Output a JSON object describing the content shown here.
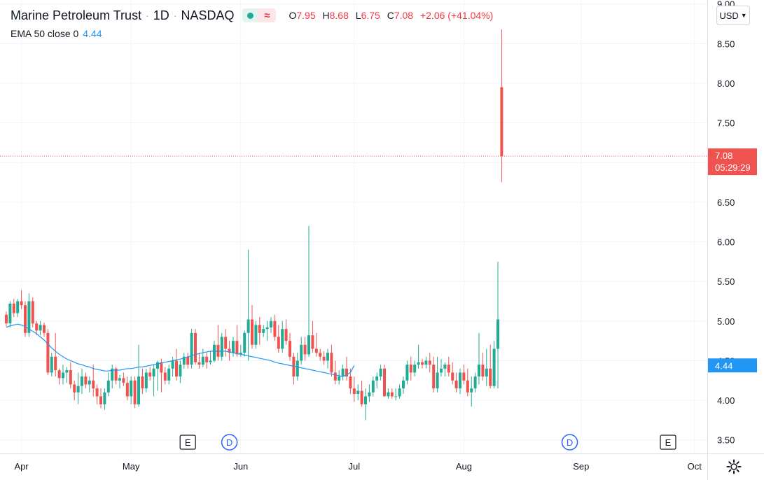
{
  "header": {
    "symbol": "Marine Petroleum Trust",
    "interval": "1D",
    "exchange": "NASDAQ",
    "open_label": "O",
    "open": "7.95",
    "high_label": "H",
    "high": "8.68",
    "low_label": "L",
    "low": "6.75",
    "close_label": "C",
    "close": "7.08",
    "change": "+2.06 (+41.04%)"
  },
  "indicator": {
    "name": "EMA 50 close 0",
    "value": "4.44"
  },
  "currency": "USD",
  "price_label": {
    "price": "7.08",
    "countdown": "05:29:29"
  },
  "ema_label": "4.44",
  "colors": {
    "up": "#22ab94",
    "down": "#ef5350",
    "ema": "#2196f3",
    "grid": "#f0f3fa",
    "text": "#131722"
  },
  "chart_data": {
    "type": "candlestick",
    "y_ticks": [
      "3.50",
      "4.00",
      "4.50",
      "5.00",
      "5.50",
      "6.00",
      "6.50",
      "7.00",
      "7.50",
      "8.00",
      "8.50",
      "9.00"
    ],
    "ylim": [
      3.33,
      9.05
    ],
    "x_ticks": [
      {
        "label": "Apr",
        "index": 4
      },
      {
        "label": "May",
        "index": 33
      },
      {
        "label": "Jun",
        "index": 62
      },
      {
        "label": "Jul",
        "index": 92
      },
      {
        "label": "Aug",
        "index": 121
      },
      {
        "label": "Sep",
        "index": 152
      },
      {
        "label": "Oct",
        "index": 182
      }
    ],
    "events": [
      {
        "type": "E",
        "index": 48
      },
      {
        "type": "D",
        "index": 59
      },
      {
        "type": "D",
        "index": 149
      },
      {
        "type": "E",
        "index": 175
      }
    ],
    "candles": [
      [
        5.08,
        5.12,
        4.93,
        4.97
      ],
      [
        4.97,
        5.25,
        4.92,
        5.22
      ],
      [
        5.22,
        5.28,
        5.05,
        5.1
      ],
      [
        5.1,
        5.28,
        5.05,
        5.25
      ],
      [
        5.25,
        5.39,
        5.15,
        5.2
      ],
      [
        5.2,
        5.25,
        4.8,
        4.85
      ],
      [
        4.85,
        5.35,
        4.8,
        5.25
      ],
      [
        5.25,
        5.3,
        4.92,
        4.97
      ],
      [
        4.97,
        5.0,
        4.82,
        4.88
      ],
      [
        4.88,
        5.0,
        4.82,
        4.95
      ],
      [
        4.95,
        4.98,
        4.8,
        4.85
      ],
      [
        4.85,
        4.9,
        4.32,
        4.35
      ],
      [
        4.35,
        4.6,
        4.3,
        4.55
      ],
      [
        4.55,
        4.85,
        4.3,
        4.38
      ],
      [
        4.38,
        4.4,
        4.2,
        4.28
      ],
      [
        4.28,
        4.45,
        4.2,
        4.35
      ],
      [
        4.35,
        4.42,
        4.22,
        4.38
      ],
      [
        4.38,
        4.48,
        4.15,
        4.2
      ],
      [
        4.2,
        4.25,
        4.0,
        4.1
      ],
      [
        4.1,
        4.35,
        3.95,
        4.18
      ],
      [
        4.18,
        4.4,
        4.08,
        4.3
      ],
      [
        4.3,
        4.35,
        4.15,
        4.2
      ],
      [
        4.2,
        4.3,
        4.1,
        4.25
      ],
      [
        4.25,
        4.45,
        4.05,
        4.15
      ],
      [
        4.15,
        4.2,
        3.95,
        4.05
      ],
      [
        4.05,
        4.15,
        3.9,
        3.95
      ],
      [
        3.95,
        4.15,
        3.88,
        4.1
      ],
      [
        4.1,
        4.35,
        4.05,
        4.25
      ],
      [
        4.25,
        4.45,
        4.15,
        4.4
      ],
      [
        4.4,
        4.42,
        4.2,
        4.25
      ],
      [
        4.25,
        4.32,
        4.15,
        4.28
      ],
      [
        4.28,
        4.35,
        4.18,
        4.22
      ],
      [
        4.22,
        4.3,
        4.0,
        4.05
      ],
      [
        4.05,
        4.3,
        3.95,
        4.25
      ],
      [
        4.25,
        4.3,
        3.9,
        3.95
      ],
      [
        3.95,
        4.7,
        3.92,
        4.3
      ],
      [
        4.3,
        4.4,
        4.08,
        4.15
      ],
      [
        4.15,
        4.4,
        4.1,
        4.35
      ],
      [
        4.35,
        4.42,
        4.25,
        4.3
      ],
      [
        4.3,
        4.45,
        4.05,
        4.4
      ],
      [
        4.4,
        4.5,
        4.12,
        4.48
      ],
      [
        4.48,
        4.52,
        4.1,
        4.35
      ],
      [
        4.35,
        4.42,
        4.2,
        4.25
      ],
      [
        4.25,
        4.45,
        4.2,
        4.4
      ],
      [
        4.4,
        4.55,
        4.3,
        4.5
      ],
      [
        4.5,
        4.65,
        4.25,
        4.3
      ],
      [
        4.3,
        4.5,
        4.22,
        4.45
      ],
      [
        4.45,
        4.6,
        4.4,
        4.55
      ],
      [
        4.55,
        4.6,
        4.4,
        4.45
      ],
      [
        4.45,
        4.9,
        4.4,
        4.85
      ],
      [
        4.85,
        4.9,
        4.45,
        4.48
      ],
      [
        4.48,
        4.6,
        4.4,
        4.45
      ],
      [
        4.45,
        4.65,
        4.42,
        4.55
      ],
      [
        4.55,
        4.6,
        4.4,
        4.48
      ],
      [
        4.48,
        4.62,
        4.45,
        4.5
      ],
      [
        4.5,
        4.75,
        4.48,
        4.7
      ],
      [
        4.7,
        4.95,
        4.5,
        4.55
      ],
      [
        4.55,
        4.85,
        4.5,
        4.8
      ],
      [
        4.8,
        4.9,
        4.55,
        4.65
      ],
      [
        4.65,
        4.75,
        4.5,
        4.6
      ],
      [
        4.6,
        4.8,
        4.55,
        4.75
      ],
      [
        4.75,
        4.95,
        4.55,
        4.58
      ],
      [
        4.58,
        4.7,
        4.55,
        4.6
      ],
      [
        4.6,
        4.88,
        4.55,
        4.85
      ],
      [
        4.85,
        5.9,
        4.5,
        5.02
      ],
      [
        5.02,
        5.2,
        4.65,
        4.7
      ],
      [
        4.7,
        5.0,
        4.65,
        4.95
      ],
      [
        4.95,
        5.05,
        4.7,
        4.85
      ],
      [
        4.85,
        4.95,
        4.8,
        4.9
      ],
      [
        4.9,
        5.0,
        4.75,
        4.92
      ],
      [
        4.92,
        5.05,
        4.85,
        5.0
      ],
      [
        5.0,
        5.08,
        4.75,
        4.8
      ],
      [
        4.8,
        4.95,
        4.6,
        4.65
      ],
      [
        4.65,
        5.0,
        4.6,
        4.9
      ],
      [
        4.9,
        5.02,
        4.7,
        4.75
      ],
      [
        4.75,
        4.85,
        4.5,
        4.55
      ],
      [
        4.55,
        4.6,
        4.2,
        4.3
      ],
      [
        4.3,
        4.6,
        4.25,
        4.5
      ],
      [
        4.5,
        4.8,
        4.45,
        4.7
      ],
      [
        4.7,
        4.8,
        4.5,
        4.58
      ],
      [
        4.58,
        6.2,
        4.55,
        4.82
      ],
      [
        4.82,
        5.0,
        4.6,
        4.65
      ],
      [
        4.65,
        4.85,
        4.55,
        4.6
      ],
      [
        4.6,
        4.65,
        4.5,
        4.55
      ],
      [
        4.55,
        4.62,
        4.45,
        4.5
      ],
      [
        4.5,
        4.65,
        4.4,
        4.6
      ],
      [
        4.6,
        4.7,
        4.3,
        4.35
      ],
      [
        4.35,
        4.5,
        4.2,
        4.25
      ],
      [
        4.25,
        4.38,
        4.2,
        4.3
      ],
      [
        4.3,
        4.45,
        4.25,
        4.4
      ],
      [
        4.4,
        4.55,
        4.25,
        4.3
      ],
      [
        4.3,
        4.4,
        4.08,
        4.15
      ],
      [
        4.15,
        4.3,
        3.98,
        4.08
      ],
      [
        4.08,
        4.2,
        4.0,
        4.12
      ],
      [
        4.12,
        4.25,
        3.92,
        3.95
      ],
      [
        3.95,
        4.15,
        3.75,
        4.05
      ],
      [
        4.05,
        4.2,
        3.98,
        4.1
      ],
      [
        4.1,
        4.3,
        4.05,
        4.25
      ],
      [
        4.25,
        4.35,
        4.15,
        4.3
      ],
      [
        4.3,
        4.45,
        4.25,
        4.4
      ],
      [
        4.4,
        4.45,
        4.05,
        4.05
      ],
      [
        4.05,
        4.15,
        4.02,
        4.1
      ],
      [
        4.1,
        4.15,
        4.02,
        4.05
      ],
      [
        4.05,
        4.15,
        4.0,
        4.05
      ],
      [
        4.05,
        4.2,
        4.02,
        4.15
      ],
      [
        4.15,
        4.3,
        4.08,
        4.25
      ],
      [
        4.25,
        4.5,
        4.2,
        4.45
      ],
      [
        4.45,
        4.55,
        4.25,
        4.35
      ],
      [
        4.35,
        4.5,
        4.3,
        4.45
      ],
      [
        4.45,
        4.7,
        4.4,
        4.48
      ],
      [
        4.48,
        4.52,
        4.4,
        4.45
      ],
      [
        4.45,
        4.55,
        4.4,
        4.5
      ],
      [
        4.5,
        4.6,
        4.35,
        4.45
      ],
      [
        4.45,
        4.55,
        4.1,
        4.15
      ],
      [
        4.15,
        4.55,
        4.1,
        4.35
      ],
      [
        4.35,
        4.52,
        4.3,
        4.4
      ],
      [
        4.4,
        4.48,
        4.3,
        4.45
      ],
      [
        4.45,
        4.55,
        4.3,
        4.35
      ],
      [
        4.35,
        4.48,
        4.2,
        4.25
      ],
      [
        4.25,
        4.35,
        4.1,
        4.15
      ],
      [
        4.15,
        4.4,
        4.08,
        4.35
      ],
      [
        4.35,
        4.45,
        4.2,
        4.25
      ],
      [
        4.25,
        4.4,
        4.05,
        4.1
      ],
      [
        4.1,
        4.3,
        3.92,
        4.15
      ],
      [
        4.15,
        4.35,
        4.1,
        4.3
      ],
      [
        4.3,
        4.85,
        4.2,
        4.45
      ],
      [
        4.45,
        4.6,
        4.25,
        4.3
      ],
      [
        4.3,
        4.65,
        4.18,
        4.4
      ],
      [
        4.4,
        4.7,
        4.15,
        4.18
      ],
      [
        4.18,
        4.75,
        4.15,
        4.65
      ],
      [
        4.65,
        5.75,
        4.15,
        5.02
      ],
      [
        7.95,
        8.68,
        6.75,
        7.08
      ]
    ],
    "ema": [
      4.92,
      4.94,
      4.95,
      4.96,
      4.95,
      4.93,
      4.9,
      4.87,
      4.84,
      4.8,
      4.76,
      4.71,
      4.66,
      4.62,
      4.58,
      4.55,
      4.52,
      4.5,
      4.48,
      4.46,
      4.45,
      4.43,
      4.42,
      4.4,
      4.39,
      4.38,
      4.37,
      4.37,
      4.38,
      4.38,
      4.38,
      4.39,
      4.4,
      4.4,
      4.41,
      4.42,
      4.42,
      4.43,
      4.44,
      4.45,
      4.46,
      4.47,
      4.48,
      4.49,
      4.5,
      4.51,
      4.52,
      4.53,
      4.55,
      4.56,
      4.58,
      4.59,
      4.6,
      4.61,
      4.62,
      4.62,
      4.62,
      4.62,
      4.62,
      4.61,
      4.6,
      4.59,
      4.58,
      4.57,
      4.56,
      4.55,
      4.54,
      4.53,
      4.52,
      4.51,
      4.5,
      4.48,
      4.47,
      4.46,
      4.45,
      4.44,
      4.43,
      4.42,
      4.41,
      4.4,
      4.39,
      4.38,
      4.37,
      4.36,
      4.35,
      4.34,
      4.33,
      4.32,
      4.31,
      4.3,
      4.32,
      4.35,
      4.44
    ]
  }
}
